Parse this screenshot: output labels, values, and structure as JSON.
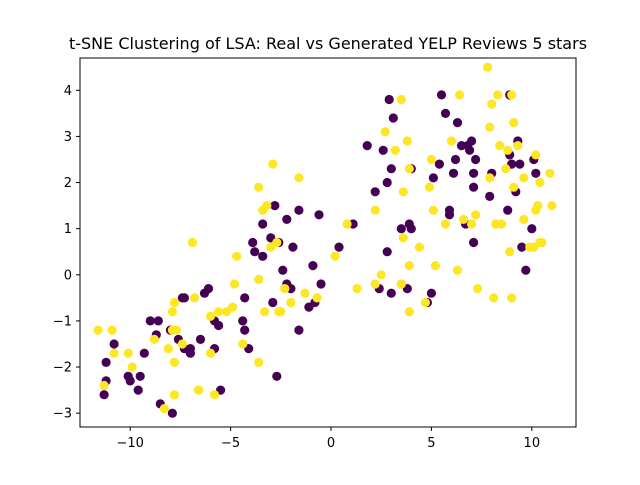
{
  "chart_data": {
    "type": "scatter",
    "title": "t-SNE Clustering of LSA: Real vs Generated YELP Reviews 5 stars",
    "xlabel": "",
    "ylabel": "",
    "xlim": [
      -12.5,
      12.2
    ],
    "ylim": [
      -3.3,
      4.7
    ],
    "xticks": [
      -10,
      -5,
      0,
      5,
      10
    ],
    "yticks": [
      -3,
      -2,
      -1,
      0,
      1,
      2,
      3,
      4
    ],
    "xtick_labels": [
      "−10",
      "−5",
      "0",
      "5",
      "10"
    ],
    "ytick_labels": [
      "−3",
      "−2",
      "−1",
      "0",
      "1",
      "2",
      "3",
      "4"
    ],
    "grid": false,
    "legend": "none",
    "series": [
      {
        "color": "#440154",
        "points": [
          [
            -11.3,
            -2.6
          ],
          [
            -11.2,
            -1.9
          ],
          [
            -11.2,
            -2.3
          ],
          [
            -10.8,
            -1.5
          ],
          [
            -10.1,
            -2.2
          ],
          [
            -10.0,
            -2.3
          ],
          [
            -9.6,
            -2.5
          ],
          [
            -9.5,
            -2.2
          ],
          [
            -9.3,
            -1.7
          ],
          [
            -9.0,
            -1.0
          ],
          [
            -8.7,
            -1.3
          ],
          [
            -8.6,
            -1.0
          ],
          [
            -8.5,
            -2.8
          ],
          [
            -8.0,
            -1.2
          ],
          [
            -7.9,
            -3.0
          ],
          [
            -7.6,
            -1.4
          ],
          [
            -7.4,
            -0.5
          ],
          [
            -7.3,
            -0.5
          ],
          [
            -7.3,
            -1.6
          ],
          [
            -7.0,
            -1.7
          ],
          [
            -7.0,
            -1.6
          ],
          [
            -6.5,
            -1.4
          ],
          [
            -6.3,
            -0.4
          ],
          [
            -6.1,
            -0.3
          ],
          [
            -5.8,
            -1.0
          ],
          [
            -5.8,
            -1.6
          ],
          [
            -5.6,
            -1.1
          ],
          [
            -5.5,
            -2.5
          ],
          [
            -4.4,
            -1.0
          ],
          [
            -4.3,
            -1.2
          ],
          [
            -4.3,
            -0.5
          ],
          [
            -4.1,
            -1.6
          ],
          [
            -3.9,
            0.7
          ],
          [
            -3.8,
            0.5
          ],
          [
            -3.4,
            0.4
          ],
          [
            -3.4,
            1.1
          ],
          [
            -3.0,
            0.8
          ],
          [
            -2.9,
            -0.6
          ],
          [
            -2.8,
            1.5
          ],
          [
            -2.7,
            -2.2
          ],
          [
            -2.6,
            0.7
          ],
          [
            -2.4,
            0.1
          ],
          [
            -2.2,
            1.2
          ],
          [
            -2.2,
            -0.2
          ],
          [
            -2.0,
            -0.3
          ],
          [
            -1.9,
            0.6
          ],
          [
            -1.6,
            -1.2
          ],
          [
            -1.6,
            1.4
          ],
          [
            -1.1,
            -0.7
          ],
          [
            -0.9,
            0.2
          ],
          [
            -0.8,
            -0.6
          ],
          [
            -0.6,
            1.3
          ],
          [
            -0.5,
            -0.2
          ],
          [
            0.4,
            0.6
          ],
          [
            1.1,
            1.1
          ],
          [
            1.8,
            2.8
          ],
          [
            2.2,
            1.8
          ],
          [
            2.4,
            -0.3
          ],
          [
            2.6,
            2.7
          ],
          [
            2.8,
            0.5
          ],
          [
            2.8,
            2.0
          ],
          [
            3.0,
            -0.4
          ],
          [
            3.0,
            2.3
          ],
          [
            3.1,
            3.4
          ],
          [
            2.9,
            3.8
          ],
          [
            3.5,
            1.0
          ],
          [
            3.8,
            -0.3
          ],
          [
            3.9,
            1.1
          ],
          [
            4.0,
            2.3
          ],
          [
            4.0,
            1.0
          ],
          [
            4.8,
            -0.6
          ],
          [
            5.0,
            -0.4
          ],
          [
            5.1,
            2.1
          ],
          [
            5.4,
            2.4
          ],
          [
            5.5,
            3.9
          ],
          [
            5.7,
            3.5
          ],
          [
            5.9,
            1.4
          ],
          [
            5.9,
            1.3
          ],
          [
            6.1,
            2.2
          ],
          [
            6.2,
            2.5
          ],
          [
            6.3,
            3.3
          ],
          [
            6.5,
            2.8
          ],
          [
            6.7,
            1.1
          ],
          [
            6.8,
            2.8
          ],
          [
            6.9,
            2.7
          ],
          [
            7.0,
            2.9
          ],
          [
            7.1,
            2.2
          ],
          [
            7.1,
            1.9
          ],
          [
            7.2,
            2.5
          ],
          [
            7.1,
            0.7
          ],
          [
            7.9,
            1.7
          ],
          [
            8.0,
            2.2
          ],
          [
            8.8,
            1.4
          ],
          [
            8.9,
            2.6
          ],
          [
            8.9,
            3.9
          ],
          [
            9.0,
            2.4
          ],
          [
            9.2,
            1.8
          ],
          [
            9.3,
            2.9
          ],
          [
            9.4,
            2.4
          ],
          [
            9.5,
            0.6
          ],
          [
            9.7,
            0.1
          ],
          [
            10.1,
            2.5
          ],
          [
            10.2,
            2.2
          ],
          [
            10.0,
            1.0
          ]
        ]
      },
      {
        "color": "#fde725",
        "points": [
          [
            -11.6,
            -1.2
          ],
          [
            -11.3,
            -2.4
          ],
          [
            -10.9,
            -1.2
          ],
          [
            -10.8,
            -1.7
          ],
          [
            -10.1,
            -1.7
          ],
          [
            -9.9,
            -2.0
          ],
          [
            -8.8,
            -1.4
          ],
          [
            -8.3,
            -2.9
          ],
          [
            -8.1,
            -1.6
          ],
          [
            -7.9,
            -0.8
          ],
          [
            -7.9,
            -1.2
          ],
          [
            -7.8,
            -1.9
          ],
          [
            -7.7,
            -1.2
          ],
          [
            -7.8,
            -0.6
          ],
          [
            -7.8,
            -2.6
          ],
          [
            -7.4,
            -1.5
          ],
          [
            -6.9,
            0.7
          ],
          [
            -6.8,
            -0.5
          ],
          [
            -6.6,
            -2.5
          ],
          [
            -6.0,
            -0.9
          ],
          [
            -6.0,
            -1.7
          ],
          [
            -5.8,
            -2.6
          ],
          [
            -5.6,
            -0.8
          ],
          [
            -5.2,
            -0.8
          ],
          [
            -4.9,
            -0.7
          ],
          [
            -4.8,
            -0.2
          ],
          [
            -4.7,
            0.4
          ],
          [
            -4.4,
            -1.5
          ],
          [
            -3.6,
            1.9
          ],
          [
            -3.6,
            -0.1
          ],
          [
            -3.4,
            1.4
          ],
          [
            -3.6,
            -1.9
          ],
          [
            -3.2,
            1.5
          ],
          [
            -3.3,
            -0.8
          ],
          [
            -3.0,
            0.6
          ],
          [
            -2.9,
            2.4
          ],
          [
            -2.7,
            0.7
          ],
          [
            -2.6,
            -0.8
          ],
          [
            -2.5,
            -0.8
          ],
          [
            -2.3,
            -0.3
          ],
          [
            -2.0,
            -0.6
          ],
          [
            -1.6,
            2.1
          ],
          [
            -1.3,
            -0.4
          ],
          [
            -0.7,
            -0.5
          ],
          [
            0.2,
            0.4
          ],
          [
            0.8,
            1.1
          ],
          [
            1.3,
            -0.3
          ],
          [
            2.2,
            1.4
          ],
          [
            2.2,
            -0.2
          ],
          [
            2.5,
            0.0
          ],
          [
            2.7,
            3.1
          ],
          [
            3.2,
            2.7
          ],
          [
            3.5,
            3.8
          ],
          [
            3.5,
            -0.2
          ],
          [
            3.6,
            0.8
          ],
          [
            3.5,
            -0.2
          ],
          [
            3.6,
            1.8
          ],
          [
            3.8,
            2.9
          ],
          [
            3.9,
            0.2
          ],
          [
            3.9,
            -0.8
          ],
          [
            3.9,
            2.3
          ],
          [
            4.4,
            0.6
          ],
          [
            4.7,
            -0.6
          ],
          [
            4.9,
            1.9
          ],
          [
            5.0,
            2.5
          ],
          [
            5.1,
            1.4
          ],
          [
            5.2,
            0.2
          ],
          [
            5.7,
            1.1
          ],
          [
            6.0,
            2.9
          ],
          [
            6.3,
            0.1
          ],
          [
            6.4,
            3.9
          ],
          [
            6.6,
            1.2
          ],
          [
            7.0,
            1.1
          ],
          [
            7.2,
            1.3
          ],
          [
            7.3,
            -0.3
          ],
          [
            7.8,
            4.5
          ],
          [
            7.9,
            3.2
          ],
          [
            7.9,
            2.1
          ],
          [
            8.0,
            3.7
          ],
          [
            8.1,
            -0.5
          ],
          [
            8.2,
            1.1
          ],
          [
            8.3,
            3.9
          ],
          [
            8.4,
            2.8
          ],
          [
            8.5,
            1.1
          ],
          [
            8.7,
            2.3
          ],
          [
            8.8,
            2.7
          ],
          [
            8.9,
            0.5
          ],
          [
            9.0,
            -0.5
          ],
          [
            9.0,
            3.9
          ],
          [
            9.1,
            1.9
          ],
          [
            9.1,
            3.3
          ],
          [
            9.3,
            2.8
          ],
          [
            9.6,
            1.2
          ],
          [
            9.6,
            2.1
          ],
          [
            9.9,
            0.6
          ],
          [
            10.2,
            1.4
          ],
          [
            10.2,
            2.6
          ],
          [
            10.3,
            1.5
          ],
          [
            10.4,
            0.7
          ],
          [
            10.4,
            2.0
          ],
          [
            10.5,
            0.7
          ],
          [
            10.9,
            2.2
          ],
          [
            11.0,
            1.5
          ],
          [
            10.1,
            0.6
          ]
        ]
      }
    ]
  }
}
